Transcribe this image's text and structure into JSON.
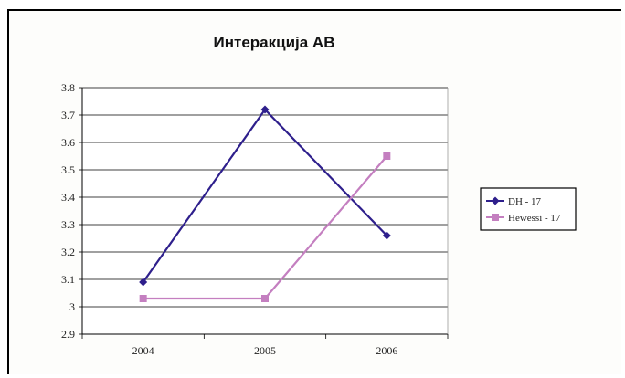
{
  "chart_data": {
    "type": "line",
    "title": "Интеракција AB",
    "xlabel": "",
    "ylabel": "",
    "categories": [
      "2004",
      "2005",
      "2006"
    ],
    "ylim": [
      2.9,
      3.8
    ],
    "yticks": [
      "2.9",
      "3",
      "3.1",
      "3.2",
      "3.3",
      "3.4",
      "3.5",
      "3.6",
      "3.7",
      "3.8"
    ],
    "grid": true,
    "legend_position": "right",
    "series": [
      {
        "name": "DH - 17",
        "values": [
          3.09,
          3.72,
          3.26
        ],
        "color": "#2e1f8c",
        "marker": "diamond"
      },
      {
        "name": "Hewessi - 17",
        "values": [
          3.03,
          3.03,
          3.55
        ],
        "color": "#c47fc0",
        "marker": "square"
      }
    ]
  }
}
